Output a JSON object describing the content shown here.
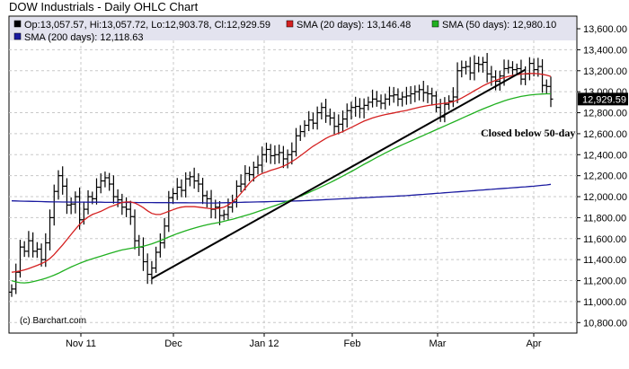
{
  "chart_data": {
    "type": "ohlc",
    "title": "DOW Industrials - Daily OHLC Chart",
    "legend": {
      "ohlc": {
        "label": "Op:13,057.57, Hi:13,057.72, Lo:12,903.78, Cl:12,929.59",
        "color": "#000000"
      },
      "sma20": {
        "label": "SMA (20 days): 13,146.48",
        "color": "#d42020"
      },
      "sma50": {
        "label": "SMA (50 days): 12,980.10",
        "color": "#20b020"
      },
      "sma200": {
        "label": "SMA (200 days): 12,118.63",
        "color": "#1a1aa0"
      }
    },
    "last_close_label": "12,929.59",
    "annotation": "Closed below 50-day",
    "credit": "(c) Barchart.com",
    "y_ticks": [
      "13,600.00",
      "13,400.00",
      "13,200.00",
      "13,000.00",
      "12,800.00",
      "12,600.00",
      "12,400.00",
      "12,200.00",
      "12,000.00",
      "11,800.00",
      "11,600.00",
      "11,400.00",
      "11,200.00",
      "11,000.00",
      "10,800.00"
    ],
    "x_ticks": [
      "Nov 11",
      "Dec",
      "Jan 12",
      "Feb",
      "Mar",
      "Apr"
    ],
    "ylim": [
      10700,
      13720
    ],
    "closes": [
      11120,
      11280,
      11520,
      11480,
      11580,
      11480,
      11500,
      11400,
      11560,
      11800,
      12050,
      12200,
      12100,
      11920,
      11930,
      12000,
      11780,
      11880,
      12000,
      11980,
      12090,
      12150,
      12180,
      12120,
      12000,
      11970,
      11900,
      11880,
      11810,
      11580,
      11520,
      11380,
      11260,
      11320,
      11470,
      11560,
      11720,
      11990,
      12030,
      12090,
      12060,
      12170,
      12190,
      12150,
      12120,
      12010,
      11980,
      11880,
      11900,
      11820,
      11830,
      11900,
      11950,
      12100,
      12120,
      12220,
      12210,
      12280,
      12300,
      12400,
      12450,
      12390,
      12400,
      12420,
      12360,
      12400,
      12430,
      12580,
      12620,
      12680,
      12730,
      12700,
      12800,
      12850,
      12770,
      12750,
      12670,
      12690,
      12740,
      12820,
      12850,
      12860,
      12840,
      12870,
      12900,
      12930,
      12910,
      12890,
      12930,
      12960,
      12970,
      12930,
      12950,
      12960,
      12980,
      13000,
      13020,
      12990,
      12980,
      12960,
      12850,
      12760,
      12880,
      12910,
      12950,
      13200,
      13230,
      13240,
      13180,
      13270,
      13260,
      13280,
      13170,
      13140,
      13100,
      13150,
      13220,
      13230,
      13210,
      13220,
      13120,
      13170,
      13270,
      13210,
      13240,
      13060,
      13050,
      12930
    ],
    "sma20": [
      11280,
      11285,
      11292,
      11302,
      11315,
      11330,
      11345,
      11362,
      11382,
      11410,
      11448,
      11495,
      11540,
      11590,
      11640,
      11690,
      11735,
      11775,
      11805,
      11830,
      11845,
      11860,
      11880,
      11900,
      11915,
      11930,
      11945,
      11950,
      11950,
      11940,
      11920,
      11895,
      11865,
      11840,
      11830,
      11830,
      11845,
      11860,
      11875,
      11890,
      11900,
      11905,
      11905,
      11905,
      11900,
      11895,
      11890,
      11885,
      11885,
      11890,
      11900,
      11920,
      11950,
      11985,
      12030,
      12080,
      12130,
      12170,
      12200,
      12220,
      12235,
      12250,
      12262,
      12275,
      12290,
      12310,
      12335,
      12360,
      12390,
      12420,
      12450,
      12480,
      12505,
      12530,
      12555,
      12575,
      12590,
      12605,
      12620,
      12640,
      12660,
      12680,
      12700,
      12720,
      12735,
      12750,
      12762,
      12772,
      12782,
      12790,
      12798,
      12806,
      12814,
      12822,
      12832,
      12842,
      12852,
      12860,
      12868,
      12874,
      12880,
      12885,
      12890,
      12895,
      12905,
      12920,
      12940,
      12962,
      12985,
      13010,
      13032,
      13055,
      13075,
      13093,
      13108,
      13122,
      13135,
      13146,
      13155,
      13162,
      13168,
      13172,
      13174,
      13174,
      13172,
      13166,
      13158,
      13146
    ],
    "sma50": [
      11200,
      11188,
      11180,
      11178,
      11182,
      11190,
      11200,
      11210,
      11222,
      11236,
      11252,
      11270,
      11290,
      11310,
      11330,
      11348,
      11365,
      11380,
      11395,
      11408,
      11420,
      11432,
      11445,
      11458,
      11470,
      11482,
      11492,
      11500,
      11508,
      11514,
      11520,
      11528,
      11538,
      11550,
      11565,
      11580,
      11598,
      11615,
      11632,
      11648,
      11662,
      11675,
      11688,
      11700,
      11712,
      11722,
      11732,
      11740,
      11748,
      11756,
      11765,
      11775,
      11785,
      11796,
      11808,
      11820,
      11832,
      11845,
      11858,
      11872,
      11886,
      11900,
      11914,
      11928,
      11942,
      11957,
      11972,
      11988,
      12005,
      12022,
      12040,
      12058,
      12076,
      12095,
      12114,
      12134,
      12154,
      12175,
      12196,
      12218,
      12240,
      12262,
      12285,
      12308,
      12330,
      12352,
      12374,
      12395,
      12416,
      12436,
      12456,
      12475,
      12494,
      12512,
      12530,
      12548,
      12566,
      12584,
      12602,
      12620,
      12638,
      12656,
      12674,
      12692,
      12710,
      12728,
      12746,
      12764,
      12782,
      12800,
      12818,
      12835,
      12852,
      12868,
      12884,
      12898,
      12912,
      12925,
      12936,
      12946,
      12955,
      12962,
      12968,
      12972,
      12976,
      12978,
      12980,
      12980
    ],
    "sma200": [
      11960,
      11959,
      11958,
      11957,
      11956,
      11955,
      11954,
      11953,
      11952,
      11951,
      11950,
      11950,
      11949,
      11949,
      11948,
      11948,
      11948,
      11948,
      11947,
      11947,
      11947,
      11947,
      11946,
      11946,
      11946,
      11946,
      11945,
      11945,
      11945,
      11945,
      11944,
      11944,
      11944,
      11944,
      11943,
      11943,
      11943,
      11943,
      11942,
      11942,
      11942,
      11942,
      11941,
      11941,
      11941,
      11941,
      11940,
      11940,
      11940,
      11941,
      11942,
      11943,
      11944,
      11945,
      11946,
      11947,
      11948,
      11949,
      11950,
      11951,
      11952,
      11953,
      11954,
      11955,
      11956,
      11957,
      11958,
      11959,
      11960,
      11962,
      11964,
      11966,
      11968,
      11970,
      11972,
      11974,
      11976,
      11978,
      11980,
      11982,
      11984,
      11986,
      11988,
      11990,
      11992,
      11994,
      11996,
      11998,
      12000,
      12002,
      12004,
      12006,
      12008,
      12010,
      12013,
      12016,
      12019,
      12022,
      12025,
      12028,
      12031,
      12034,
      12037,
      12040,
      12043,
      12046,
      12049,
      12052,
      12055,
      12058,
      12061,
      12064,
      12067,
      12070,
      12073,
      12076,
      12079,
      12082,
      12085,
      12088,
      12091,
      12094,
      12097,
      12100,
      12104,
      12108,
      12112,
      12118
    ],
    "trendline": {
      "from": {
        "index": 33,
        "value": 11220
      },
      "to": {
        "index": 121,
        "value": 13210
      }
    },
    "grid": true
  }
}
